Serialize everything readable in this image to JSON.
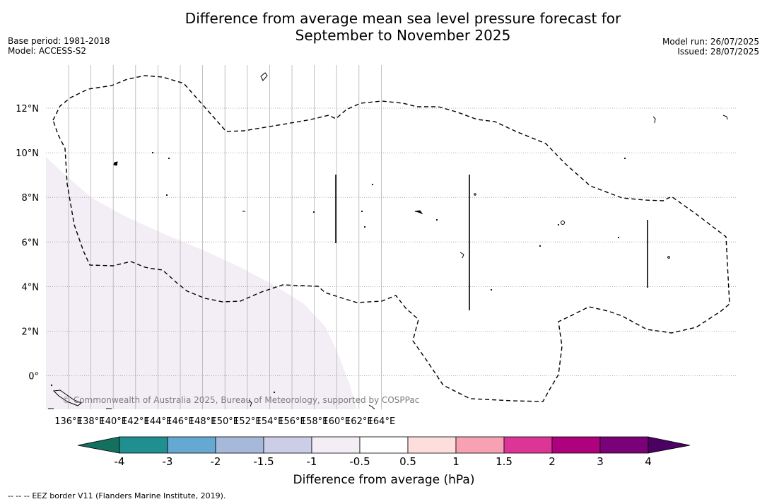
{
  "header": {
    "title_line1": "Difference from average mean sea level pressure forecast for",
    "title_line2": "September to November 2025",
    "base_period": "Base period: 1981-2018",
    "model": "Model: ACCESS-S2",
    "model_run": "Model run: 26/07/2025",
    "issued": "Issued: 28/07/2025"
  },
  "map": {
    "lon_labels": [
      "136°E",
      "138°E",
      "140°E",
      "142°E",
      "144°E",
      "146°E",
      "148°E",
      "150°E",
      "152°E",
      "154°E",
      "156°E",
      "158°E",
      "160°E",
      "162°E",
      "164°E"
    ],
    "lat_labels": [
      "12°N",
      "10°N",
      "8°N",
      "6°N",
      "4°N",
      "2°N",
      "0°"
    ],
    "copyright": "© Commonwealth of Australia 2025, Bureau of Meteorology, supported by COSPPac",
    "anomaly_color": "#f3eef5"
  },
  "colorbar": {
    "label": "Difference from average (hPa)",
    "ticks": [
      "-4",
      "-3",
      "-2",
      "-1.5",
      "-1",
      "-0.5",
      "0.5",
      "1",
      "1.5",
      "2",
      "3",
      "4"
    ],
    "colors": [
      "#1f8f8f",
      "#65a8d2",
      "#a6b9db",
      "#cccde6",
      "#f3eef5",
      "#ffffff",
      "#fddedd",
      "#f9a1b4",
      "#dd3597",
      "#ad017e",
      "#7a0177"
    ],
    "under_color": "#13705f",
    "over_color": "#4b0062"
  },
  "footer": {
    "legend_symbol": "-- -- --",
    "legend_text": "EEZ border V11 (Flanders Marine Institute, 2019)."
  }
}
